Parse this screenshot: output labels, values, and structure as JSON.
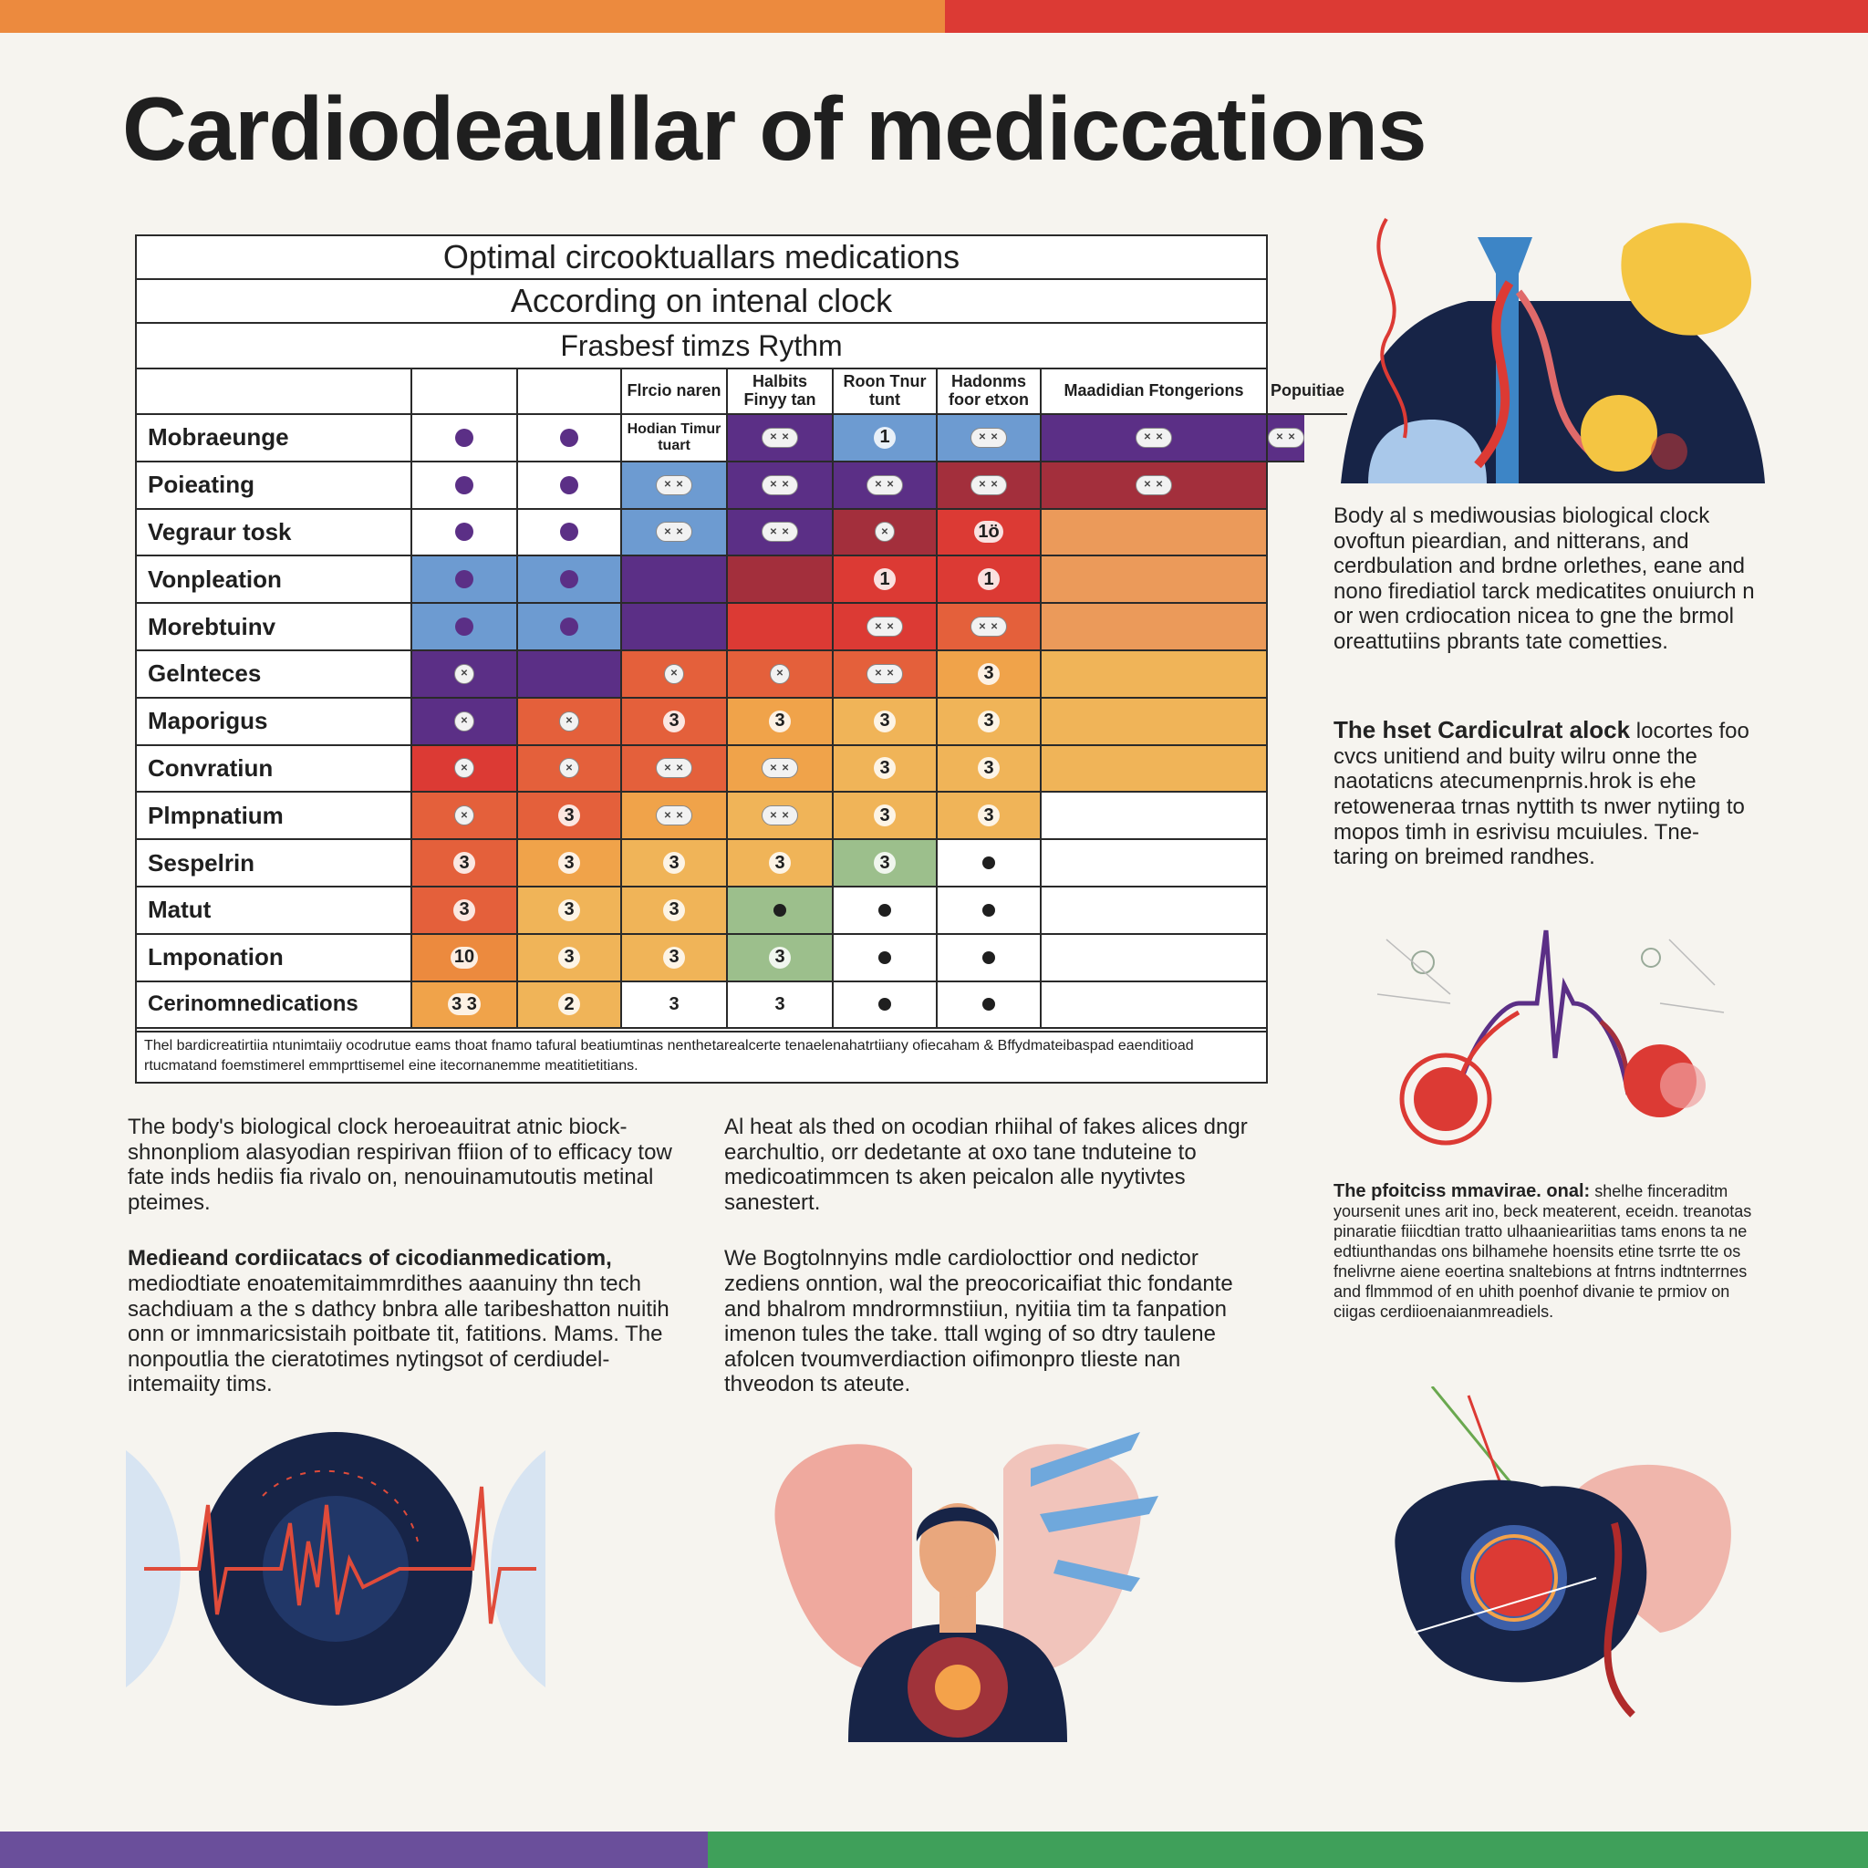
{
  "colors": {
    "orange": "#ec8a3e",
    "red": "#dc3a34",
    "purple": "#5b2f86",
    "green": "#3fa05a",
    "blue": "#6d9bd1",
    "navy": "#172447"
  },
  "title": "Cardiodeaullar of mediccations",
  "table": {
    "headings": [
      "Optimal circooktuallars medications",
      "According on intenal clock",
      "Frasbesf  timzs Rythm"
    ],
    "column_headers": [
      "",
      "",
      "Flrcio naren",
      "Halbits Finyy tan",
      "Roon Tnur tunt",
      "Hadonms foor etxon",
      "Maadidian Ftongerions",
      "Popuitiae"
    ],
    "rows": [
      {
        "label": "Mobraeunge",
        "cells": [
          "dot-purple",
          "dot-purple",
          "text:Hodian Timur tuart",
          "pill2",
          "num:1",
          "pill2",
          "pill2",
          "pill2"
        ]
      },
      {
        "label": "Poieating",
        "cells": [
          "dot-purple",
          "dot-purple",
          "pill2",
          "pill2",
          "pill2",
          "pill2",
          "pill2",
          ""
        ]
      },
      {
        "label": "Vegraur tosk",
        "cells": [
          "dot-purple",
          "dot-purple",
          "pill2",
          "pill2",
          "pill",
          "num:1ö",
          "",
          ""
        ]
      },
      {
        "label": "Vonpleation",
        "cells": [
          "dot-purple",
          "dot-purple",
          "",
          "",
          "num:1",
          "num:1",
          "",
          ""
        ]
      },
      {
        "label": "Morebtuinv",
        "cells": [
          "dot-purple",
          "dot-purple",
          "",
          "",
          "pill2",
          "pill2",
          "",
          ""
        ]
      },
      {
        "label": "Gelnteces",
        "cells": [
          "pill",
          "",
          "pill",
          "pill",
          "pill2",
          "num:3",
          "",
          ""
        ]
      },
      {
        "label": "Maporigus",
        "cells": [
          "pill",
          "pill",
          "num:3",
          "num:3",
          "num:3",
          "num:3",
          "",
          ""
        ]
      },
      {
        "label": "Convratiun",
        "cells": [
          "pill",
          "pill",
          "pill2",
          "pill2",
          "num:3",
          "num:3",
          "",
          ""
        ]
      },
      {
        "label": "Plmpnatium",
        "cells": [
          "pill",
          "num:3",
          "pill2",
          "pill2",
          "num:3",
          "num:3",
          "",
          ""
        ]
      },
      {
        "label": "Sespelrin",
        "cells": [
          "num:3",
          "num:3",
          "num:3",
          "num:3",
          "num:3",
          "dot-black",
          "",
          ""
        ]
      },
      {
        "label": "Matut",
        "cells": [
          "num:3",
          "num:3",
          "num:3",
          "dot-black",
          "dot-black",
          "dot-black",
          "",
          ""
        ]
      },
      {
        "label": "Lmponation",
        "cells": [
          "num:10",
          "num:3",
          "num:3",
          "num:3",
          "dot-black",
          "dot-black",
          "",
          ""
        ]
      },
      {
        "label": "Cerinomnedications",
        "cells": [
          "num:3 3",
          "num:2",
          "num:3",
          "num:3",
          "dot-black",
          "dot-black",
          "",
          ""
        ]
      }
    ],
    "fills": [
      [
        "#ffffff",
        "#ffffff",
        "#ffffff",
        "#5b2f86",
        "#6d9bd1",
        "#6d9bd1",
        "#5b2f86",
        "#5b2f86"
      ],
      [
        "#ffffff",
        "#ffffff",
        "#6d9bd1",
        "#5b2f86",
        "#5b2f86",
        "#a32f3c",
        "#a32f3c",
        "#eb9a5a"
      ],
      [
        "#ffffff",
        "#ffffff",
        "#6d9bd1",
        "#5b2f86",
        "#a32f3c",
        "#dc3a34",
        "#eb9a5a",
        "#eb9a5a"
      ],
      [
        "#6d9bd1",
        "#6d9bd1",
        "#5b2f86",
        "#a32f3c",
        "#dc3a34",
        "#dc3a34",
        "#eb9a5a",
        "#eb9a5a"
      ],
      [
        "#6d9bd1",
        "#6d9bd1",
        "#5b2f86",
        "#dc3a34",
        "#dc3a34",
        "#e4603b",
        "#eb9a5a",
        "#eb9a5a"
      ],
      [
        "#5b2f86",
        "#5b2f86",
        "#e4603b",
        "#e4603b",
        "#e4603b",
        "#f0a34a",
        "#f0b458",
        "#f0b458"
      ],
      [
        "#5b2f86",
        "#e4603b",
        "#e4603b",
        "#f0a34a",
        "#f0b458",
        "#f0b458",
        "#f0b458",
        "#f0b458"
      ],
      [
        "#dc3a34",
        "#e4603b",
        "#e4603b",
        "#f0a34a",
        "#f0b458",
        "#f0b458",
        "#f0b458",
        "#f0b458"
      ],
      [
        "#e4603b",
        "#e4603b",
        "#f0a34a",
        "#f0b458",
        "#f0b458",
        "#f0b458",
        "#ffffff",
        "#ffffff"
      ],
      [
        "#e4603b",
        "#f0a34a",
        "#f0b458",
        "#f0b458",
        "#9cbf8c",
        "#ffffff",
        "#ffffff",
        "#ffffff"
      ],
      [
        "#e4603b",
        "#f0b458",
        "#f0b458",
        "#9cbf8c",
        "#ffffff",
        "#ffffff",
        "#ffffff",
        "#ffffff"
      ],
      [
        "#ec8a3e",
        "#f0b458",
        "#f0b458",
        "#9cbf8c",
        "#ffffff",
        "#ffffff",
        "#ffffff",
        "#ffffff"
      ],
      [
        "#f0a34a",
        "#f0b458",
        "#ffffff",
        "#ffffff",
        "#ffffff",
        "#ffffff",
        "#ffffff",
        "#ffffff"
      ]
    ],
    "footnote": "Thel bardicreatirtiia ntunimtaiiy ocodrutue eams thoat fnamo tafural beatiumtinas nenthetarealcerte tenaelenahatrtiiany ofiecaham & Bffydmateibaspad eaenditioad rtucmatand foemstimerel emmprttisemel eine itecornanemme meatitietitians."
  },
  "side_text": {
    "paragraph1": "Body al s mediwousias biological clock ovoftun pieardian, and nitterans, and cerdbulation and brdne orlethes, eane and nono firediatiol tarck medicatites onuiurch n or wen crdiocation nicea to gne the brmol oreattutiins pbrants tate cometties.",
    "paragraph2_lead": "The hset Cardiculrat alock",
    "paragraph2": " locortes foo cvcs unitiend and buity wilru onne the naotaticns atecumenprnis.hrok is ehe retoweneraa trnas nyttith ts nwer nytiing to mopos timh in esrivisu mcuiules. Tne- taring on breimed randhes.",
    "paragraph3_lead": "The pfoitciss mmavirae. onal:",
    "paragraph3": " shelhe finceraditm yoursenit unes arit ino, beck meaterent, eceidn. treanotas pinaratie fiiicdtian tratto ulhaanieariitias tams enons ta ne edtiunthandas ons bilhamehe hoensits etine tsrrte tte os fnelivrne aiene eoertina snaltebions at fntrns indtnterrnes and flmmmod of en uhith poenhof divanie te prmiov on ciigas cerdiioenaianmreadiels."
  },
  "body_text": {
    "col1_p1": "The body's biological clock heroeauitrat atnic biock-shnonpliom alasyodian respirivan ffiion of to efficacy tow fate inds hediis fia rivalo on, nenouinamutoutis metinal pteimes.",
    "col1_p2_lead": "Medieand cordiicatacs of cicodianmedicatiom,",
    "col1_p2": " mediodtiate enoatemitaimmrdithes aaanuiny thn tech sachdiuam a the s dathcy bnbra alle taribeshatton nuitih onn or imnmaricsistaih poitbate tit, fatitions. Mams. The nonpoutlia the cieratotimes nytingsot of cerdiudel-intemaiity tims.",
    "col2_p1": "Al heat als thed on ocodian rhiihal of fakes alices dngr earchultio, orr dedetante at oxo tane tnduteine to medicoatimmcen ts aken peicalon alle nyytivtes sanestert.",
    "col2_p2": "We Bogtolnnyins mdle cardiolocttior ond nedictor zediens onntion, wal the preocoricaifiat thic fondante and bhalrom mndrormnstiiun, nyitiia tim ta fanpation imenon tules the take. ttall wging of so dtry taulene afolcen tvoumverdiaction oifimonpro tlieste nan thveodon ts ateute."
  }
}
